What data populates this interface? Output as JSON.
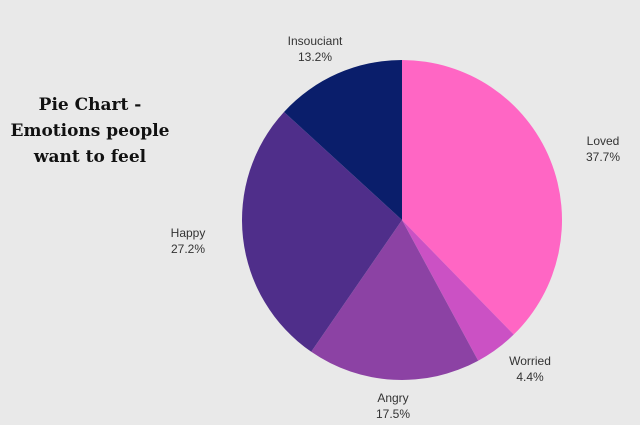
{
  "chart_data": {
    "type": "pie",
    "title_lines": [
      "Pie Chart -",
      "Emotions people",
      "want to feel"
    ],
    "slices": [
      {
        "label": "Loved",
        "value": 37.7,
        "value_text": "37.7%",
        "color": "#ff66c4"
      },
      {
        "label": "Worried",
        "value": 4.4,
        "value_text": "4.4%",
        "color": "#cb51c4"
      },
      {
        "label": "Angry",
        "value": 17.5,
        "value_text": "17.5%",
        "color": "#8c42a4"
      },
      {
        "label": "Happy",
        "value": 27.2,
        "value_text": "27.2%",
        "color": "#4f2e8a"
      },
      {
        "label": "Insouciant",
        "value": 13.2,
        "value_text": "13.2%",
        "color": "#0a1e6b"
      }
    ],
    "start": "12 o'clock",
    "direction": "clockwise",
    "legend": "none"
  }
}
